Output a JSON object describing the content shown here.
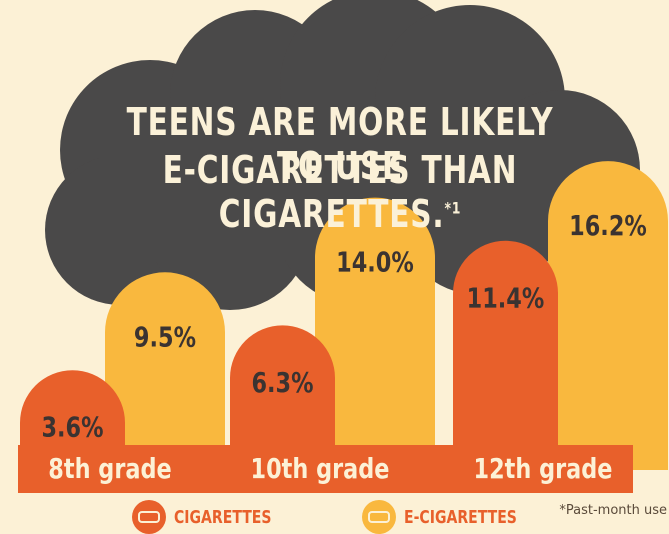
{
  "colors": {
    "background": "#fcf1d6",
    "cloud": "#4a4949",
    "cigarettes": "#e8602b",
    "ecigarettes": "#f9b83e",
    "label_text": "#3b3331",
    "grade_text": "#fcf1d6"
  },
  "header": {
    "title_line1": "TEENS ARE MORE LIKELY TO USE",
    "title_line2": "E-CIGARETTES THAN CIGARETTES.",
    "title_footnote_mark": "*1"
  },
  "legend": {
    "cigarettes_label": "CIGARETTES",
    "ecigarettes_label": "E-CIGARETTES"
  },
  "footnote": "*Past-month use",
  "chart_data": {
    "type": "bar",
    "title": "TEENS ARE MORE LIKELY TO USE E-CIGARETTES THAN CIGARETTES.",
    "categories": [
      "8th grade",
      "10th grade",
      "12th grade"
    ],
    "series": [
      {
        "name": "CIGARETTES",
        "values": [
          3.6,
          6.3,
          11.4
        ],
        "labels": [
          "3.6%",
          "6.3%",
          "11.4%"
        ],
        "color": "#e8602b"
      },
      {
        "name": "E-CIGARETTES",
        "values": [
          9.5,
          14.0,
          16.2
        ],
        "labels": [
          "9.5%",
          "14.0%",
          "16.2%"
        ],
        "color": "#f9b83e"
      }
    ],
    "unit": "%",
    "legend_position": "bottom",
    "grid": false
  }
}
